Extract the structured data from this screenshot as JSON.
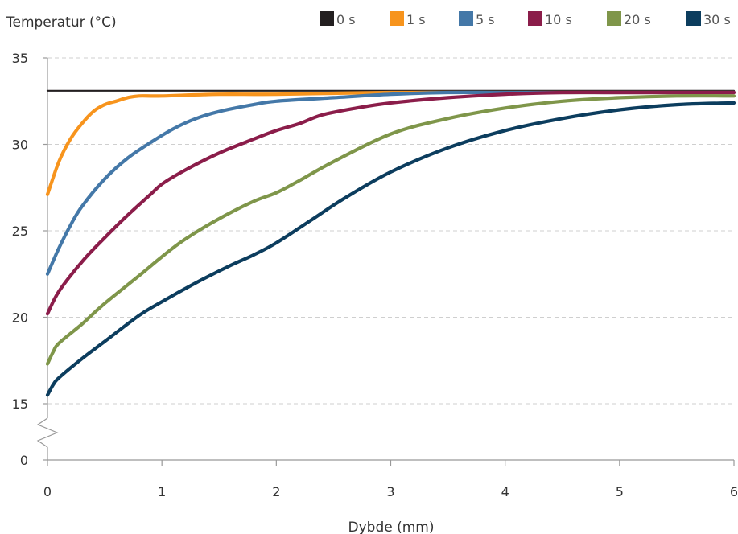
{
  "chart_data": {
    "type": "line",
    "title": "",
    "ylabel": "Temperatur (°C)",
    "xlabel": "Dybde (mm)",
    "xlim": [
      0,
      6
    ],
    "ylim": [
      15,
      35
    ],
    "y_axis_break": {
      "below": 15,
      "baseline_tick": 0
    },
    "x_ticks": [
      "0",
      "1",
      "2",
      "3",
      "4",
      "5",
      "6"
    ],
    "y_ticks": [
      "0",
      "15",
      "20",
      "25",
      "30",
      "35"
    ],
    "grid": "horizontal dashed",
    "legend_position": "top-right",
    "series": [
      {
        "name": "0 s",
        "color": "#231f20",
        "x": [
          0,
          1,
          2,
          3,
          4,
          5,
          6
        ],
        "y": [
          33.1,
          33.1,
          33.1,
          33.1,
          33.1,
          33.1,
          33.1
        ]
      },
      {
        "name": "1 s",
        "color": "#f7941d",
        "x": [
          0,
          0.1,
          0.2,
          0.3,
          0.4,
          0.5,
          0.6,
          0.7,
          0.8,
          1.0,
          1.5,
          2,
          3,
          4,
          5,
          6
        ],
        "y": [
          27.1,
          29.0,
          30.3,
          31.2,
          31.9,
          32.3,
          32.5,
          32.7,
          32.8,
          32.8,
          32.9,
          32.9,
          33.0,
          33.0,
          33.0,
          33.0
        ]
      },
      {
        "name": "5 s",
        "color": "#4478a8",
        "x": [
          0,
          0.1,
          0.2,
          0.3,
          0.5,
          0.7,
          0.9,
          1.1,
          1.3,
          1.5,
          1.8,
          2,
          2.5,
          3,
          3.5,
          4,
          5,
          6
        ],
        "y": [
          22.5,
          24.0,
          25.3,
          26.4,
          28.0,
          29.2,
          30.1,
          30.9,
          31.5,
          31.9,
          32.3,
          32.5,
          32.7,
          32.9,
          33.0,
          33.0,
          33.0,
          33.0
        ]
      },
      {
        "name": "10 s",
        "color": "#8b1d4a",
        "x": [
          0,
          0.1,
          0.3,
          0.5,
          0.7,
          0.9,
          1.0,
          1.2,
          1.5,
          1.8,
          2.0,
          2.2,
          2.4,
          2.7,
          3.0,
          3.5,
          4.0,
          4.5,
          5.0,
          6.0
        ],
        "y": [
          20.2,
          21.5,
          23.2,
          24.6,
          25.9,
          27.1,
          27.7,
          28.5,
          29.5,
          30.3,
          30.8,
          31.2,
          31.7,
          32.1,
          32.4,
          32.7,
          32.9,
          33.0,
          33.0,
          33.0
        ]
      },
      {
        "name": "20 s",
        "color": "#7f964a",
        "x": [
          0,
          0.05,
          0.1,
          0.3,
          0.5,
          0.8,
          1.0,
          1.2,
          1.5,
          1.8,
          2.0,
          2.2,
          2.5,
          3.0,
          3.5,
          4.0,
          4.5,
          5.0,
          5.5,
          6.0
        ],
        "y": [
          17.3,
          18.0,
          18.5,
          19.6,
          20.8,
          22.4,
          23.5,
          24.5,
          25.7,
          26.7,
          27.2,
          27.9,
          29.0,
          30.6,
          31.5,
          32.1,
          32.5,
          32.7,
          32.8,
          32.8
        ]
      },
      {
        "name": "30 s",
        "color": "#0c3d5e",
        "x": [
          0,
          0.05,
          0.1,
          0.3,
          0.5,
          0.8,
          1.0,
          1.3,
          1.6,
          1.8,
          2.0,
          2.3,
          2.6,
          3.0,
          3.5,
          4.0,
          4.5,
          5.0,
          5.5,
          6.0
        ],
        "y": [
          15.5,
          16.1,
          16.5,
          17.6,
          18.6,
          20.1,
          20.9,
          22.0,
          23.0,
          23.6,
          24.3,
          25.6,
          26.9,
          28.4,
          29.8,
          30.8,
          31.5,
          32.0,
          32.3,
          32.4
        ]
      }
    ]
  }
}
